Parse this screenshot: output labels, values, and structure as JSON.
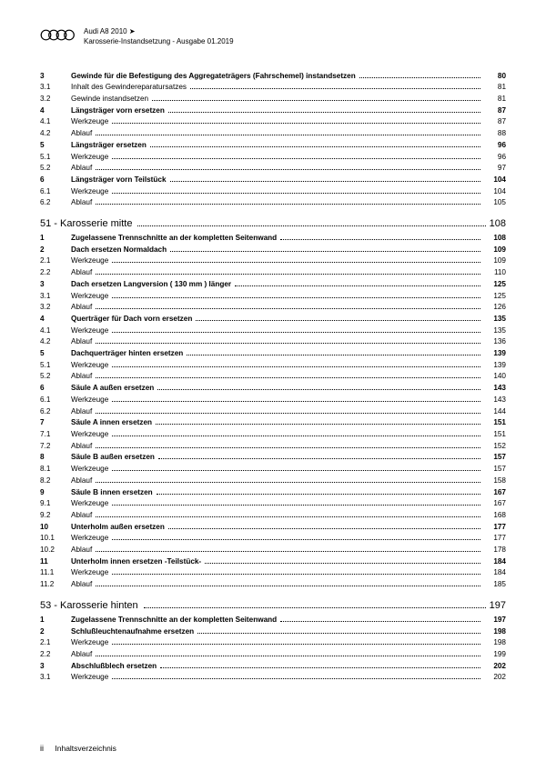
{
  "header": {
    "line1": "Audi A8 2010 ➤",
    "line2": "Karosserie-Instandsetzung - Ausgabe 01.2019"
  },
  "footer": {
    "page_roman": "ii",
    "label": "Inhaltsverzeichnis"
  },
  "pregroup": [
    {
      "num": "3",
      "title": "Gewinde für die Befestigung des Aggregateträgers (Fahrschemel) instandsetzen",
      "page": "80",
      "bold": true
    },
    {
      "num": "3.1",
      "title": "Inhalt des Gewindereparatursatzes",
      "page": "81",
      "bold": false
    },
    {
      "num": "3.2",
      "title": "Gewinde instandsetzen",
      "page": "81",
      "bold": false
    },
    {
      "num": "4",
      "title": "Längsträger vorn ersetzen",
      "page": "87",
      "bold": true
    },
    {
      "num": "4.1",
      "title": "Werkzeuge",
      "page": "87",
      "bold": false
    },
    {
      "num": "4.2",
      "title": "Ablauf",
      "page": "88",
      "bold": false
    },
    {
      "num": "5",
      "title": "Längsträger ersetzen",
      "page": "96",
      "bold": true
    },
    {
      "num": "5.1",
      "title": "Werkzeuge",
      "page": "96",
      "bold": false
    },
    {
      "num": "5.2",
      "title": "Ablauf",
      "page": "97",
      "bold": false
    },
    {
      "num": "6",
      "title": "Längsträger vorn Teilstück",
      "page": "104",
      "bold": true
    },
    {
      "num": "6.1",
      "title": "Werkzeuge",
      "page": "104",
      "bold": false
    },
    {
      "num": "6.2",
      "title": "Ablauf",
      "page": "105",
      "bold": false
    }
  ],
  "chapters": [
    {
      "label": "51 - Karosserie mitte",
      "page": "108",
      "entries": [
        {
          "num": "1",
          "title": "Zugelassene Trennschnitte an der kompletten Seitenwand",
          "page": "108",
          "bold": true
        },
        {
          "num": "2",
          "title": "Dach ersetzen Normaldach",
          "page": "109",
          "bold": true
        },
        {
          "num": "2.1",
          "title": "Werkzeuge",
          "page": "109",
          "bold": false
        },
        {
          "num": "2.2",
          "title": "Ablauf",
          "page": "110",
          "bold": false
        },
        {
          "num": "3",
          "title": "Dach ersetzen Langversion ( 130 mm ) länger",
          "page": "125",
          "bold": true
        },
        {
          "num": "3.1",
          "title": "Werkzeuge",
          "page": "125",
          "bold": false
        },
        {
          "num": "3.2",
          "title": "Ablauf",
          "page": "126",
          "bold": false
        },
        {
          "num": "4",
          "title": "Querträger für Dach vorn ersetzen",
          "page": "135",
          "bold": true
        },
        {
          "num": "4.1",
          "title": "Werkzeuge",
          "page": "135",
          "bold": false
        },
        {
          "num": "4.2",
          "title": "Ablauf",
          "page": "136",
          "bold": false
        },
        {
          "num": "5",
          "title": "Dachquerträger hinten ersetzen",
          "page": "139",
          "bold": true
        },
        {
          "num": "5.1",
          "title": "Werkzeuge",
          "page": "139",
          "bold": false
        },
        {
          "num": "5.2",
          "title": "Ablauf",
          "page": "140",
          "bold": false
        },
        {
          "num": "6",
          "title": "Säule A außen ersetzen",
          "page": "143",
          "bold": true
        },
        {
          "num": "6.1",
          "title": "Werkzeuge",
          "page": "143",
          "bold": false
        },
        {
          "num": "6.2",
          "title": "Ablauf",
          "page": "144",
          "bold": false
        },
        {
          "num": "7",
          "title": "Säule A innen ersetzen",
          "page": "151",
          "bold": true
        },
        {
          "num": "7.1",
          "title": "Werkzeuge",
          "page": "151",
          "bold": false
        },
        {
          "num": "7.2",
          "title": "Ablauf",
          "page": "152",
          "bold": false
        },
        {
          "num": "8",
          "title": "Säule B außen ersetzen",
          "page": "157",
          "bold": true
        },
        {
          "num": "8.1",
          "title": "Werkzeuge",
          "page": "157",
          "bold": false
        },
        {
          "num": "8.2",
          "title": "Ablauf",
          "page": "158",
          "bold": false
        },
        {
          "num": "9",
          "title": "Säule B innen ersetzen",
          "page": "167",
          "bold": true
        },
        {
          "num": "9.1",
          "title": "Werkzeuge",
          "page": "167",
          "bold": false
        },
        {
          "num": "9.2",
          "title": "Ablauf",
          "page": "168",
          "bold": false
        },
        {
          "num": "10",
          "title": "Unterholm außen ersetzen",
          "page": "177",
          "bold": true
        },
        {
          "num": "10.1",
          "title": "Werkzeuge",
          "page": "177",
          "bold": false
        },
        {
          "num": "10.2",
          "title": "Ablauf",
          "page": "178",
          "bold": false
        },
        {
          "num": "11",
          "title": "Unterholm innen ersetzen -Teilstück-",
          "page": "184",
          "bold": true
        },
        {
          "num": "11.1",
          "title": "Werkzeuge",
          "page": "184",
          "bold": false
        },
        {
          "num": "11.2",
          "title": "Ablauf",
          "page": "185",
          "bold": false
        }
      ]
    },
    {
      "label": "53 - Karosserie hinten",
      "page": "197",
      "entries": [
        {
          "num": "1",
          "title": "Zugelassene Trennschnitte an der kompletten Seitenwand",
          "page": "197",
          "bold": true
        },
        {
          "num": "2",
          "title": "Schlußleuchtenaufnahme ersetzen",
          "page": "198",
          "bold": true
        },
        {
          "num": "2.1",
          "title": "Werkzeuge",
          "page": "198",
          "bold": false
        },
        {
          "num": "2.2",
          "title": "Ablauf",
          "page": "199",
          "bold": false
        },
        {
          "num": "3",
          "title": "Abschlußblech ersetzen",
          "page": "202",
          "bold": true
        },
        {
          "num": "3.1",
          "title": "Werkzeuge",
          "page": "202",
          "bold": false
        }
      ]
    }
  ]
}
